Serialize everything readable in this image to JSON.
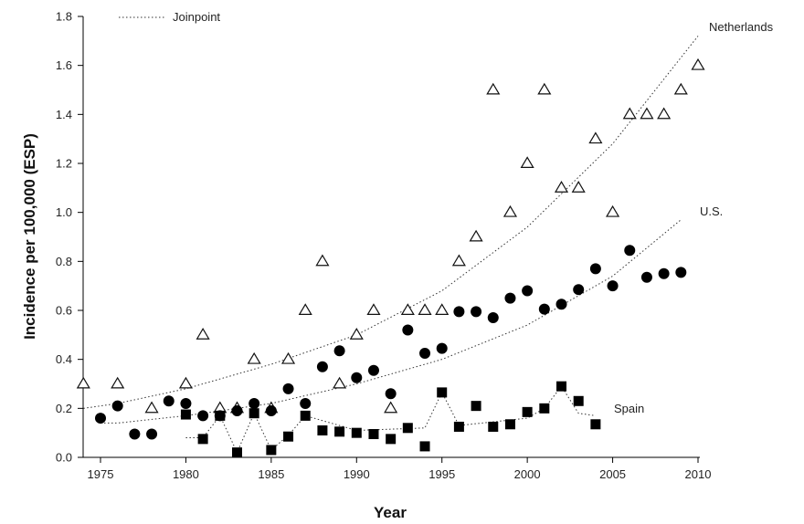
{
  "chart_data": {
    "type": "scatter",
    "xlabel": "Year",
    "ylabel": "Incidence per 100,000 (ESP)",
    "xlim": [
      1974,
      2011
    ],
    "ylim": [
      0,
      1.8
    ],
    "xticks": [
      "1975",
      "1980",
      "1985",
      "1990",
      "1995",
      "2000",
      "2005",
      "2010"
    ],
    "yticks": [
      "0.0",
      "0.2",
      "0.4",
      "0.6",
      "0.8",
      "1.0",
      "1.2",
      "1.4",
      "1.6",
      "1.8"
    ],
    "legend": {
      "label": "Joinpoint",
      "position": "top-left"
    },
    "series": [
      {
        "name": "Netherlands",
        "marker": "open-triangle",
        "x": [
          1974,
          1976,
          1978,
          1980,
          1981,
          1982,
          1983,
          1984,
          1985,
          1986,
          1987,
          1988,
          1989,
          1990,
          1991,
          1992,
          1993,
          1994,
          1995,
          1996,
          1997,
          1998,
          1999,
          2000,
          2001,
          2002,
          2003,
          2004,
          2005,
          2006,
          2007,
          2008,
          2009,
          2010
        ],
        "y": [
          0.3,
          0.3,
          0.2,
          0.3,
          0.5,
          0.2,
          0.2,
          0.4,
          0.2,
          0.4,
          0.6,
          0.8,
          0.3,
          0.5,
          0.6,
          0.2,
          0.6,
          0.6,
          0.6,
          0.8,
          0.9,
          1.5,
          1.0,
          1.2,
          1.5,
          1.1,
          1.1,
          1.3,
          1.0,
          1.4,
          1.4,
          1.4,
          1.5,
          1.6
        ],
        "joinpoint": {
          "x": [
            1974,
            1976,
            1980,
            1985,
            1990,
            1995,
            2000,
            2005,
            2010
          ],
          "y": [
            0.2,
            0.22,
            0.28,
            0.38,
            0.5,
            0.68,
            0.94,
            1.28,
            1.72
          ]
        }
      },
      {
        "name": "U.S.",
        "marker": "filled-circle",
        "x": [
          1975,
          1976,
          1977,
          1978,
          1979,
          1980,
          1981,
          1982,
          1983,
          1984,
          1985,
          1986,
          1987,
          1988,
          1989,
          1990,
          1991,
          1992,
          1993,
          1994,
          1995,
          1996,
          1997,
          1998,
          1999,
          2000,
          2001,
          2002,
          2003,
          2004,
          2005,
          2006,
          2007,
          2008,
          2009
        ],
        "y": [
          0.16,
          0.21,
          0.095,
          0.095,
          0.23,
          0.22,
          0.17,
          0.17,
          0.19,
          0.22,
          0.19,
          0.28,
          0.22,
          0.37,
          0.435,
          0.325,
          0.355,
          0.26,
          0.52,
          0.425,
          0.445,
          0.595,
          0.595,
          0.57,
          0.65,
          0.68,
          0.605,
          0.625,
          0.685,
          0.77,
          0.7,
          0.845,
          0.735,
          0.75,
          0.755
        ],
        "joinpoint": {
          "x": [
            1975,
            1976,
            1980,
            1985,
            1990,
            1995,
            2000,
            2005,
            2009
          ],
          "y": [
            0.14,
            0.14,
            0.17,
            0.22,
            0.3,
            0.4,
            0.54,
            0.74,
            0.97
          ]
        }
      },
      {
        "name": "Spain",
        "marker": "filled-square",
        "x": [
          1980,
          1981,
          1982,
          1983,
          1984,
          1985,
          1986,
          1987,
          1988,
          1989,
          1990,
          1991,
          1992,
          1993,
          1994,
          1995,
          1996,
          1997,
          1998,
          1999,
          2000,
          2001,
          2002,
          2003,
          2004
        ],
        "y": [
          0.175,
          0.075,
          0.17,
          0.02,
          0.18,
          0.03,
          0.085,
          0.17,
          0.11,
          0.105,
          0.1,
          0.095,
          0.075,
          0.12,
          0.045,
          0.265,
          0.125,
          0.21,
          0.125,
          0.135,
          0.185,
          0.2,
          0.29,
          0.23,
          0.135
        ],
        "joinpoint": {
          "x": [
            1980,
            1981,
            1982,
            1983,
            1984,
            1985,
            1986,
            1987,
            1990,
            1994,
            1995,
            1996,
            2000,
            2001,
            2002,
            2003,
            2004
          ],
          "y": [
            0.08,
            0.08,
            0.17,
            0.02,
            0.18,
            0.03,
            0.09,
            0.17,
            0.11,
            0.12,
            0.265,
            0.13,
            0.16,
            0.2,
            0.29,
            0.18,
            0.17
          ]
        }
      }
    ],
    "annotations": [
      {
        "text": "Netherlands",
        "series": "Netherlands"
      },
      {
        "text": "U.S.",
        "series": "U.S."
      },
      {
        "text": "Spain",
        "series": "Spain"
      }
    ]
  }
}
